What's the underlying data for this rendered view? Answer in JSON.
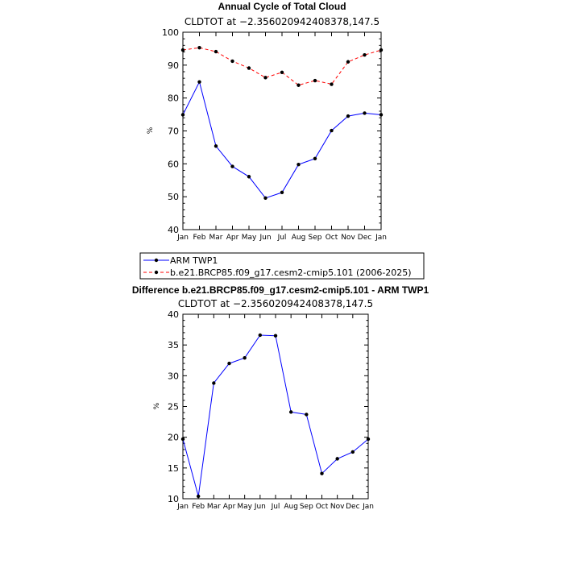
{
  "chart_data": [
    {
      "type": "line",
      "title": "Annual Cycle of Total Cloud",
      "subtitle": "CLDTOT at −2.356020942408378,147.5",
      "xlabel": "",
      "ylabel": "%",
      "categories": [
        "Jan",
        "Feb",
        "Mar",
        "Apr",
        "May",
        "Jun",
        "Jul",
        "Aug",
        "Sep",
        "Oct",
        "Nov",
        "Dec",
        "Jan"
      ],
      "ylim": [
        40,
        100
      ],
      "yticks": [
        40,
        50,
        60,
        70,
        80,
        90,
        100
      ],
      "series": [
        {
          "name": "ARM TWP1",
          "color": "#0000ff",
          "dashed": false,
          "values": [
            74.9,
            84.9,
            65.4,
            59.2,
            56.1,
            49.6,
            51.3,
            59.8,
            61.6,
            70.1,
            74.5,
            75.4,
            74.9
          ]
        },
        {
          "name": "b.e21.BRCP85.f09_g17.cesm2-cmip5.101 (2006-2025)",
          "color": "#ff0000",
          "dashed": true,
          "values": [
            94.6,
            95.3,
            94.1,
            91.2,
            89.1,
            86.2,
            87.8,
            83.9,
            85.3,
            84.2,
            91.0,
            93.1,
            94.6
          ]
        }
      ],
      "legend": "below"
    },
    {
      "type": "line",
      "title": "Difference b.e21.BRCP85.f09_g17.cesm2-cmip5.101 - ARM TWP1",
      "subtitle": "CLDTOT at −2.356020942408378,147.5",
      "xlabel": "",
      "ylabel": "%",
      "categories": [
        "Jan",
        "Feb",
        "Mar",
        "Apr",
        "May",
        "Jun",
        "Jul",
        "Aug",
        "Sep",
        "Oct",
        "Nov",
        "Dec",
        "Jan"
      ],
      "ylim": [
        10,
        40
      ],
      "yticks": [
        10,
        15,
        20,
        25,
        30,
        35,
        40
      ],
      "series": [
        {
          "name": "Difference",
          "color": "#0000ff",
          "dashed": false,
          "values": [
            19.7,
            10.4,
            28.8,
            32.0,
            32.9,
            36.6,
            36.5,
            24.1,
            23.7,
            14.1,
            16.5,
            17.6,
            19.7
          ]
        }
      ]
    }
  ]
}
